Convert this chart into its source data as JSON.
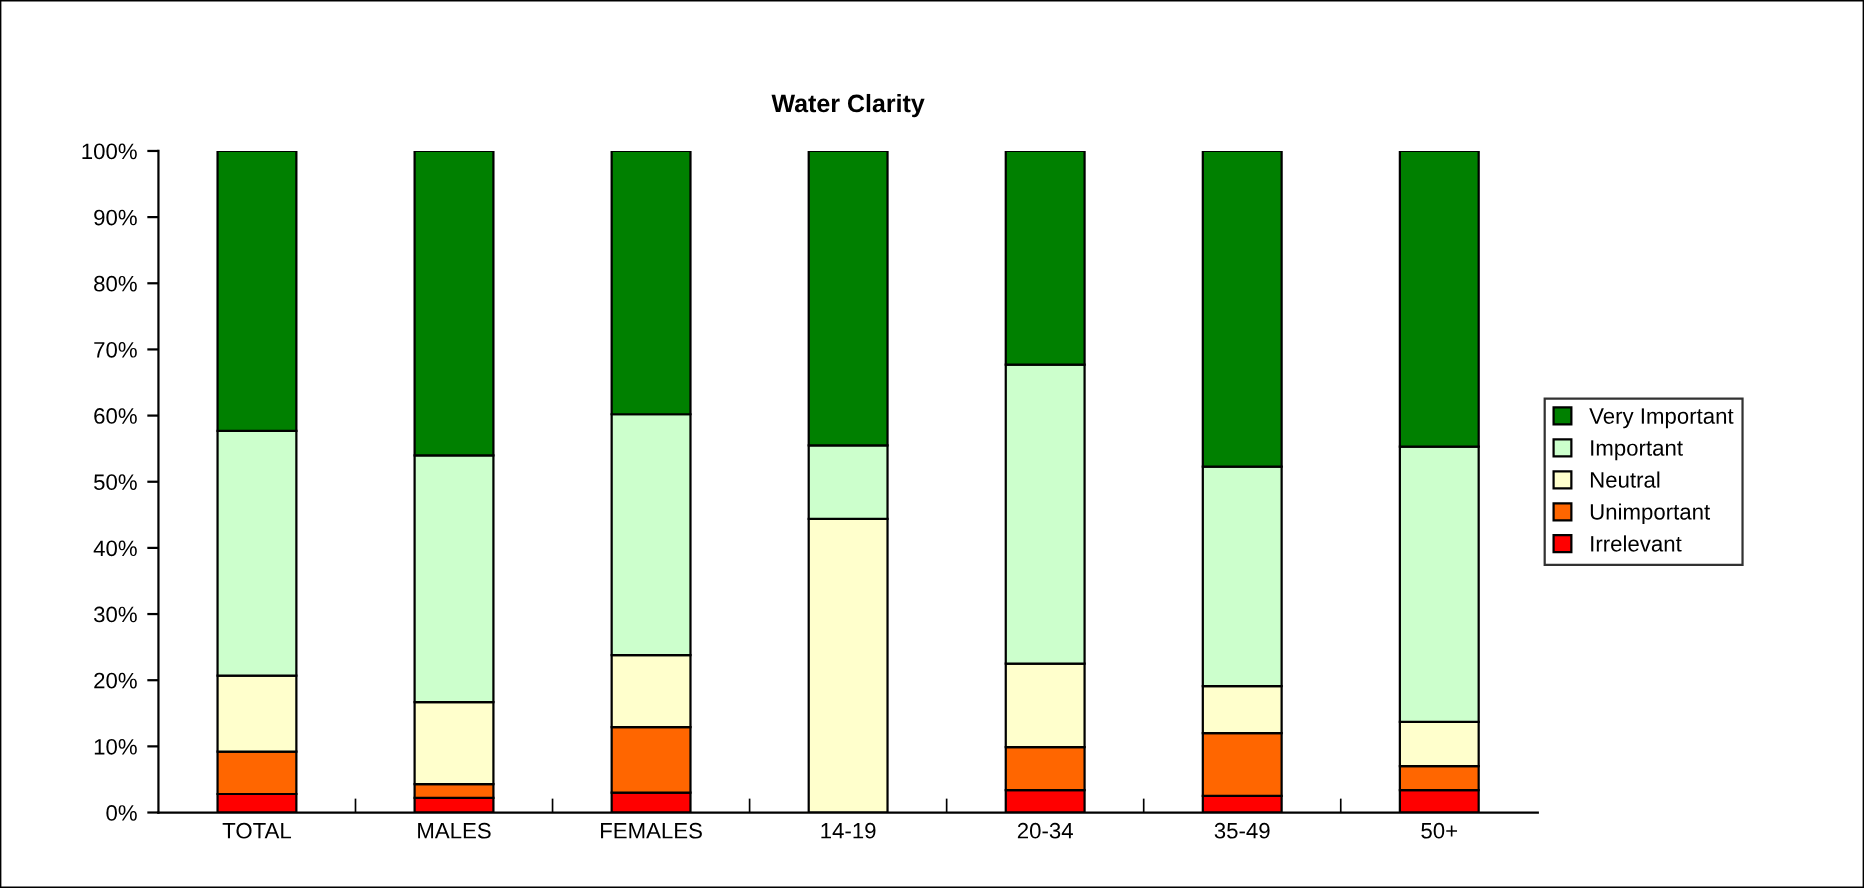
{
  "chart_data": {
    "type": "bar",
    "title": "Water Clarity",
    "stacked": true,
    "categories": [
      "TOTAL",
      "MALES",
      "FEMALES",
      "14-19",
      "20-34",
      "35-49",
      "50+"
    ],
    "series": [
      {
        "name": "Irrelevant",
        "color": "#ff0000",
        "values": [
          2.8,
          2.2,
          3.0,
          0,
          3.4,
          2.5,
          3.4
        ]
      },
      {
        "name": "Unimportant",
        "color": "#ff6600",
        "values": [
          6.4,
          2.1,
          9.9,
          0,
          6.5,
          9.5,
          3.6
        ]
      },
      {
        "name": "Neutral",
        "color": "#ffffcc",
        "values": [
          11.5,
          12.4,
          10.9,
          44.4,
          12.6,
          7.1,
          6.7
        ]
      },
      {
        "name": "Important",
        "color": "#ccffcc",
        "values": [
          37.0,
          37.3,
          36.4,
          11.1,
          45.2,
          33.2,
          41.6
        ]
      },
      {
        "name": "Very Important",
        "color": "#008000",
        "values": [
          42.3,
          46.0,
          39.8,
          44.5,
          32.3,
          47.7,
          44.7
        ]
      }
    ],
    "ylim": [
      0,
      100
    ],
    "yticks": [
      {
        "value": 0,
        "label": "0%"
      },
      {
        "value": 10,
        "label": "10%"
      },
      {
        "value": 20,
        "label": "20%"
      },
      {
        "value": 30,
        "label": "30%"
      },
      {
        "value": 40,
        "label": "40%"
      },
      {
        "value": 50,
        "label": "50%"
      },
      {
        "value": 60,
        "label": "60%"
      },
      {
        "value": 70,
        "label": "70%"
      },
      {
        "value": 80,
        "label": "80%"
      },
      {
        "value": 90,
        "label": "90%"
      },
      {
        "value": 100,
        "label": "100%"
      }
    ],
    "grid": false,
    "legend": "right"
  }
}
